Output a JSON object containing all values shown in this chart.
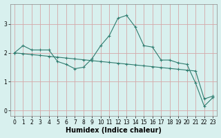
{
  "title": "",
  "xlabel": "Humidex (Indice chaleur)",
  "bg_color": "#d8f0ee",
  "grid_color": "#d4a8a8",
  "line_color": "#2e7b6e",
  "x_values": [
    0,
    1,
    2,
    3,
    4,
    5,
    6,
    7,
    8,
    9,
    10,
    11,
    12,
    13,
    14,
    15,
    16,
    17,
    18,
    19,
    20,
    21,
    22,
    23
  ],
  "line1": [
    2.0,
    2.25,
    2.1,
    2.1,
    2.1,
    1.7,
    1.6,
    1.45,
    1.5,
    1.8,
    2.25,
    2.6,
    3.2,
    3.3,
    2.9,
    2.25,
    2.2,
    1.75,
    1.75,
    1.65,
    1.6,
    0.95,
    0.15,
    0.45
  ],
  "line2": [
    2.0,
    1.97,
    1.94,
    1.91,
    1.88,
    1.85,
    1.82,
    1.79,
    1.76,
    1.73,
    1.7,
    1.67,
    1.64,
    1.61,
    1.58,
    1.55,
    1.52,
    1.49,
    1.46,
    1.43,
    1.4,
    1.37,
    0.4,
    0.5
  ],
  "ylim": [
    -0.2,
    3.7
  ],
  "xlim": [
    -0.5,
    23.5
  ],
  "yticks": [
    0,
    1,
    2,
    3
  ],
  "xticks": [
    0,
    1,
    2,
    3,
    4,
    5,
    6,
    7,
    8,
    9,
    10,
    11,
    12,
    13,
    14,
    15,
    16,
    17,
    18,
    19,
    20,
    21,
    22,
    23
  ],
  "tick_fontsize": 5.5,
  "label_fontsize": 7,
  "linewidth": 0.8,
  "markersize": 3
}
